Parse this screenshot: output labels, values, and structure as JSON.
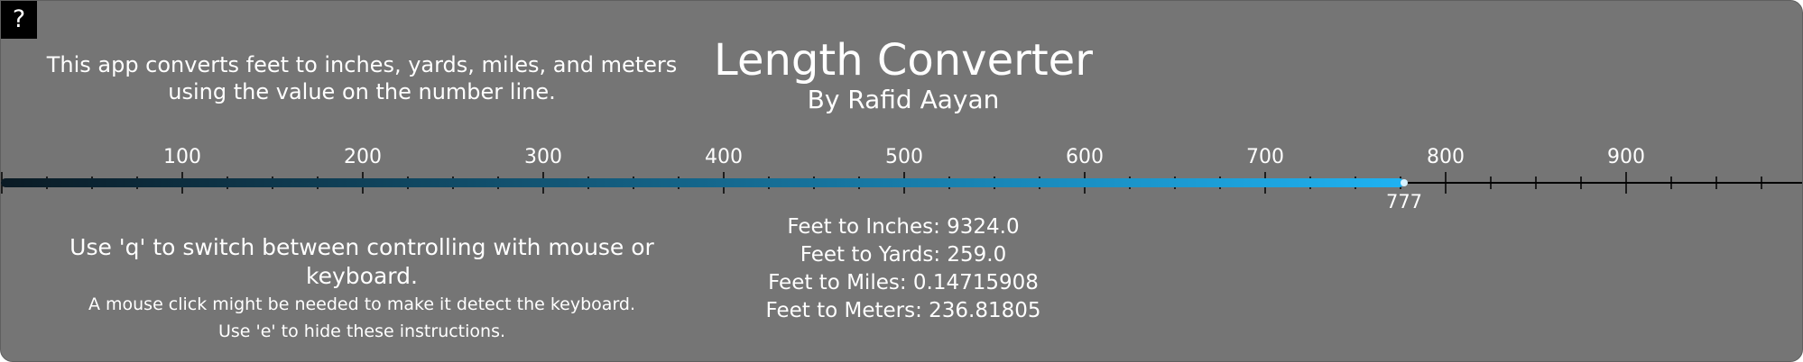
{
  "help": {
    "label": "?"
  },
  "app": {
    "title": "Length Converter",
    "author": "By Rafid Aayan",
    "description_line1": "This app converts feet to inches, yards, miles, and meters",
    "description_line2": "using the value on the number line."
  },
  "number_line": {
    "min": 0,
    "max": 1000,
    "major_step": 100,
    "minor_step": 25,
    "value": 777,
    "value_label": "777",
    "tick_labels": [
      "100",
      "200",
      "300",
      "400",
      "500",
      "600",
      "700",
      "800",
      "900"
    ],
    "colors": {
      "line": "#000000",
      "fill_start": "#0a1a24",
      "fill_end": "#1fb2f2",
      "handle": "#d8f2ff"
    }
  },
  "results": {
    "inches": "Feet to Inches: 9324.0",
    "yards": "Feet to Yards: 259.0",
    "miles": "Feet to Miles: 0.14715908",
    "meters": "Feet to Meters: 236.81805"
  },
  "instructions": {
    "line1": "Use 'q' to switch between controlling with mouse or keyboard.",
    "line2": "A mouse click might be needed to make it detect the keyboard.",
    "line3": "Use 'e' to hide these instructions."
  }
}
